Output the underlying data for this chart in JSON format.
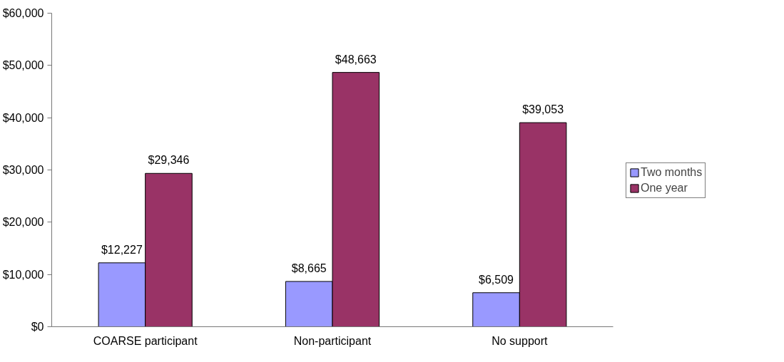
{
  "chart_data": {
    "type": "bar",
    "categories": [
      "COARSE participant",
      "Non-participant",
      "No support"
    ],
    "series": [
      {
        "name": "Two months",
        "color": "#9999ff",
        "values": [
          12227,
          8665,
          6509
        ],
        "value_labels": [
          "$12,227",
          "$8,665",
          "$6,509"
        ]
      },
      {
        "name": "One year",
        "color": "#993366",
        "values": [
          29346,
          48663,
          39053
        ],
        "value_labels": [
          "$29,346",
          "$48,663",
          "$39,053"
        ]
      }
    ],
    "ylim": [
      0,
      60000
    ],
    "yticks": [
      {
        "value": 0,
        "label": "$0"
      },
      {
        "value": 10000,
        "label": "$10,000"
      },
      {
        "value": 20000,
        "label": "$20,000"
      },
      {
        "value": 30000,
        "label": "$30,000"
      },
      {
        "value": 40000,
        "label": "$40,000"
      },
      {
        "value": 50000,
        "label": "$50,000"
      },
      {
        "value": 60000,
        "label": "$60,000"
      }
    ],
    "grid": false,
    "legend": "right"
  }
}
